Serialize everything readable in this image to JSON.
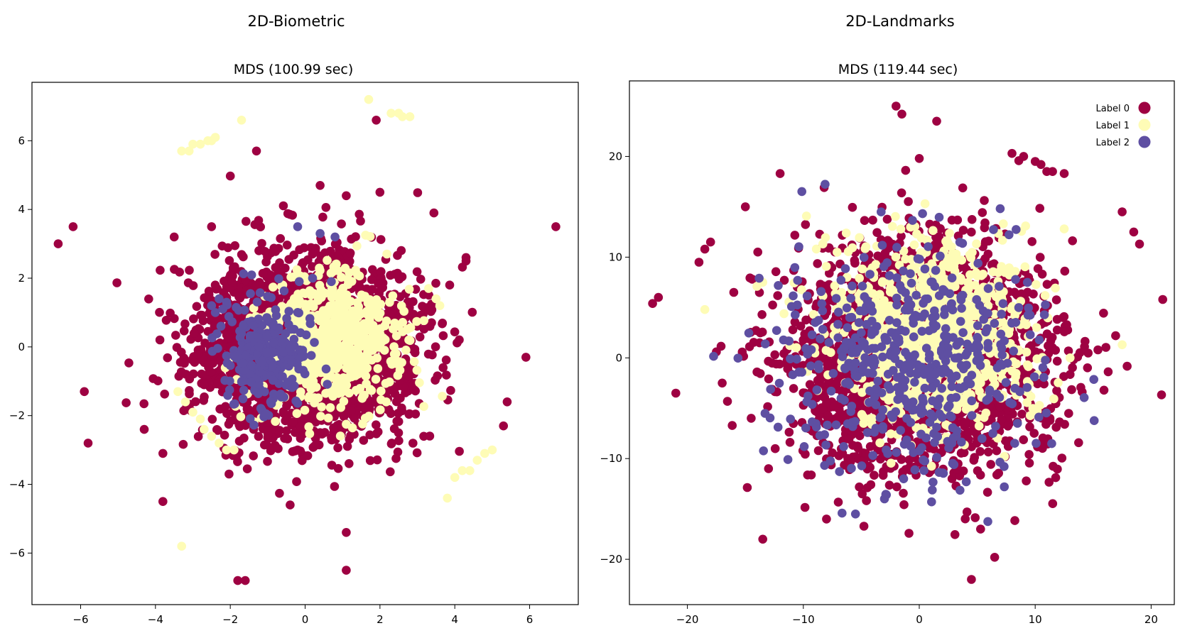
{
  "colors": {
    "label0": "#9e0142",
    "label1": "#fefcb6",
    "label2": "#5e4fa2"
  },
  "chart_data": [
    {
      "type": "scatter",
      "figure_title": "2D-Biometric",
      "title": "MDS (100.99 sec)",
      "xlabel": "",
      "ylabel": "",
      "xlim": [
        -7.3,
        7.3
      ],
      "ylim": [
        -7.5,
        7.7
      ],
      "xticks": [
        -6,
        -4,
        -2,
        0,
        2,
        4,
        6
      ],
      "yticks": [
        -6,
        -4,
        -2,
        0,
        2,
        4,
        6
      ],
      "xtick_labels": [
        "−6",
        "−4",
        "−2",
        "0",
        "2",
        "4",
        "6"
      ],
      "ytick_labels": [
        "−6",
        "−4",
        "−2",
        "0",
        "2",
        "4",
        "6"
      ],
      "legend": null,
      "series": [
        {
          "name": "Label 0",
          "color_key": "label0",
          "cluster": {
            "n": 2600,
            "cx": 0.0,
            "cy": 0.0,
            "sx": 1.45,
            "sy": 1.3,
            "seed": 11
          },
          "points": [
            [
              -6.6,
              3.0
            ],
            [
              -6.2,
              3.5
            ],
            [
              -5.9,
              -1.3
            ],
            [
              -5.8,
              -2.8
            ],
            [
              -4.3,
              -2.4
            ],
            [
              -3.8,
              -3.1
            ],
            [
              -3.8,
              -4.5
            ],
            [
              -3.5,
              3.2
            ],
            [
              -2.5,
              3.5
            ],
            [
              -1.8,
              -6.8
            ],
            [
              -1.6,
              -6.8
            ],
            [
              -1.3,
              5.7
            ],
            [
              -0.4,
              -4.6
            ],
            [
              0.4,
              4.7
            ],
            [
              1.1,
              4.4
            ],
            [
              1.1,
              -5.4
            ],
            [
              1.1,
              -6.5
            ],
            [
              1.9,
              6.6
            ],
            [
              2.0,
              4.5
            ],
            [
              4.3,
              2.5
            ],
            [
              4.3,
              2.6
            ],
            [
              5.3,
              -2.3
            ],
            [
              5.4,
              -1.6
            ],
            [
              5.9,
              -0.3
            ],
            [
              6.7,
              3.5
            ]
          ]
        },
        {
          "name": "Label 1",
          "color_key": "label1",
          "cluster": {
            "n": 650,
            "cx": 0.6,
            "cy": 0.1,
            "sx": 0.9,
            "sy": 0.95,
            "seed": 23
          },
          "points": [
            [
              -3.3,
              5.7
            ],
            [
              -3.1,
              5.7
            ],
            [
              -3.0,
              5.9
            ],
            [
              -2.8,
              5.9
            ],
            [
              -2.6,
              6.0
            ],
            [
              -2.5,
              6.0
            ],
            [
              -2.4,
              6.1
            ],
            [
              -1.7,
              6.6
            ],
            [
              1.7,
              7.2
            ],
            [
              2.3,
              6.8
            ],
            [
              2.5,
              6.8
            ],
            [
              2.6,
              6.7
            ],
            [
              2.8,
              6.7
            ],
            [
              -3.4,
              -1.3
            ],
            [
              -3.2,
              -1.6
            ],
            [
              -3.0,
              -1.9
            ],
            [
              -2.8,
              -2.1
            ],
            [
              -2.7,
              -2.4
            ],
            [
              -2.5,
              -2.6
            ],
            [
              -2.3,
              -2.8
            ],
            [
              -2.1,
              -3.0
            ],
            [
              -1.9,
              -3.0
            ],
            [
              3.3,
              1.7
            ],
            [
              3.5,
              1.4
            ],
            [
              3.6,
              1.2
            ],
            [
              3.8,
              -4.4
            ],
            [
              4.0,
              -3.8
            ],
            [
              4.2,
              -3.6
            ],
            [
              4.4,
              -3.6
            ],
            [
              4.6,
              -3.3
            ],
            [
              4.8,
              -3.1
            ],
            [
              5.0,
              -3.0
            ],
            [
              -3.3,
              -5.8
            ]
          ]
        },
        {
          "name": "Label 2",
          "color_key": "label2",
          "cluster": {
            "n": 280,
            "cx": -1.0,
            "cy": -0.2,
            "sx": 0.55,
            "sy": 0.75,
            "seed": 37
          },
          "points": [
            [
              -2.5,
              1.2
            ],
            [
              -2.3,
              1.4
            ],
            [
              -2.1,
              1.3
            ],
            [
              -2.4,
              1.0
            ],
            [
              -2.2,
              1.1
            ],
            [
              -0.2,
              3.5
            ],
            [
              0.4,
              3.3
            ],
            [
              0.8,
              3.2
            ],
            [
              0.2,
              2.0
            ],
            [
              0.7,
              1.9
            ]
          ]
        }
      ]
    },
    {
      "type": "scatter",
      "figure_title": "2D-Landmarks",
      "title": "MDS (119.44 sec)",
      "xlabel": "",
      "ylabel": "",
      "xlim": [
        -25,
        22
      ],
      "ylim": [
        -24.5,
        27.5
      ],
      "xticks": [
        -20,
        -10,
        0,
        10,
        20
      ],
      "yticks": [
        -20,
        -10,
        0,
        10,
        20
      ],
      "xtick_labels": [
        "−20",
        "−10",
        "0",
        "10",
        "20"
      ],
      "ytick_labels": [
        "−20",
        "−10",
        "0",
        "10",
        "20"
      ],
      "legend": [
        "Label 0",
        "Label 1",
        "Label 2"
      ],
      "series": [
        {
          "name": "Label 0",
          "color_key": "label0",
          "cluster": {
            "n": 2400,
            "cx": 0.0,
            "cy": 0.0,
            "sx": 5.6,
            "sy": 5.6,
            "seed": 51
          },
          "points": [
            [
              -23.0,
              5.4
            ],
            [
              -22.5,
              6.0
            ],
            [
              -21.0,
              -3.5
            ],
            [
              -19.0,
              9.5
            ],
            [
              -18.5,
              10.8
            ],
            [
              -18.0,
              11.5
            ],
            [
              -17.5,
              0.6
            ],
            [
              -17.0,
              -2.5
            ],
            [
              -16.0,
              6.5
            ],
            [
              -15.0,
              15.0
            ],
            [
              -14.5,
              -6.0
            ],
            [
              -13.5,
              -18.0
            ],
            [
              -12.0,
              18.3
            ],
            [
              -2.0,
              25.0
            ],
            [
              -1.5,
              24.2
            ],
            [
              1.5,
              23.5
            ],
            [
              0.0,
              19.8
            ],
            [
              8.0,
              20.3
            ],
            [
              9.0,
              20.0
            ],
            [
              10.0,
              19.5
            ],
            [
              10.5,
              19.2
            ],
            [
              11.0,
              18.5
            ],
            [
              11.5,
              18.5
            ],
            [
              12.5,
              18.3
            ],
            [
              17.5,
              14.5
            ],
            [
              18.5,
              12.5
            ],
            [
              19.0,
              11.3
            ],
            [
              21.0,
              5.8
            ],
            [
              4.5,
              -22.0
            ],
            [
              6.5,
              -19.8
            ],
            [
              -13.0,
              -11.0
            ],
            [
              -8.0,
              -16.0
            ]
          ]
        },
        {
          "name": "Label 1",
          "color_key": "label1",
          "cluster": {
            "n": 1100,
            "cx": 1.5,
            "cy": 2.0,
            "sx": 4.0,
            "sy": 4.3,
            "seed": 63
          },
          "points": [
            [
              -18.5,
              4.8
            ],
            [
              -13.5,
              7.5
            ],
            [
              -14.0,
              7.1
            ],
            [
              0.5,
              15.3
            ],
            [
              17.5,
              1.3
            ],
            [
              12.5,
              12.8
            ]
          ]
        },
        {
          "name": "Label 2",
          "color_key": "label2",
          "cluster": {
            "n": 500,
            "cx": -1.0,
            "cy": -0.5,
            "sx": 5.8,
            "sy": 5.8,
            "seed": 79
          },
          "points": [
            [
              -6.0,
              1.5
            ],
            [
              -5.5,
              2.0
            ],
            [
              -5.8,
              0.5
            ],
            [
              -6.2,
              3.0
            ],
            [
              -5.0,
              2.5
            ],
            [
              -6.5,
              1.0
            ],
            [
              -5.2,
              3.5
            ],
            [
              -4.8,
              1.2
            ],
            [
              -5.5,
              -0.5
            ],
            [
              -7.0,
              2.0
            ],
            [
              -6.0,
              4.0
            ],
            [
              -5.5,
              -15.5
            ],
            [
              -3.0,
              -14.0
            ]
          ]
        }
      ]
    }
  ]
}
